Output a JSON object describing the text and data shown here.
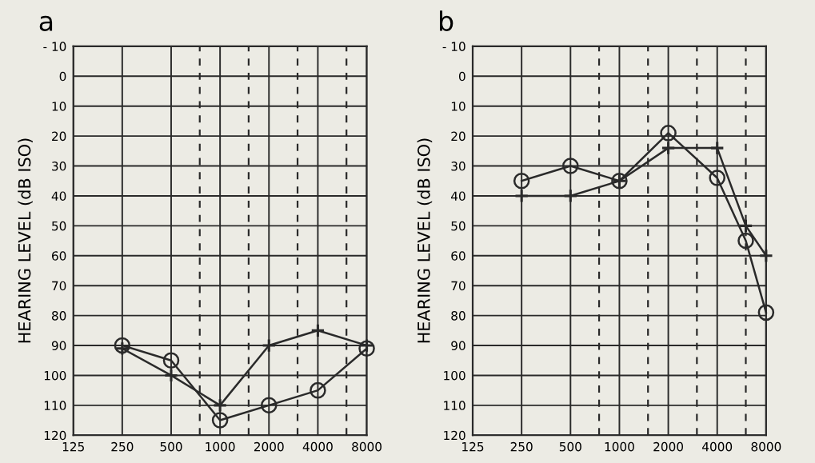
{
  "chart_data": [
    {
      "type": "line",
      "title": "a",
      "ylabel": "HEARING LEVEL (dB ISO)",
      "log": "x",
      "xlim": [
        125,
        8000
      ],
      "xticks": [
        125,
        250,
        500,
        1000,
        2000,
        4000,
        8000
      ],
      "ylim": [
        120,
        -10
      ],
      "yticks": [
        {
          "value": -10,
          "label": "- 10"
        },
        0,
        10,
        20,
        30,
        40,
        50,
        60,
        70,
        80,
        90,
        100,
        110,
        120
      ],
      "grid": true,
      "ref_lines": [
        {
          "axis": "x",
          "value": 750,
          "line_style": "dashed",
          "color": "#2a2a2a"
        },
        {
          "axis": "x",
          "value": 1500,
          "line_style": "dashed",
          "color": "#2a2a2a"
        },
        {
          "axis": "x",
          "value": 3000,
          "line_style": "dashed",
          "color": "#2a2a2a"
        },
        {
          "axis": "x",
          "value": 6000,
          "line_style": "dashed",
          "color": "#2a2a2a"
        }
      ],
      "series": [
        {
          "color": "#2a2a2a",
          "marker": "circle",
          "x": [
            250,
            500,
            1000,
            2000,
            4000,
            8000
          ],
          "values": [
            90,
            95,
            115,
            110,
            105,
            91
          ]
        },
        {
          "color": "#2a2a2a",
          "marker": "cross",
          "x": [
            250,
            500,
            1000,
            2000,
            4000,
            8000
          ],
          "values": [
            91,
            100,
            110,
            90,
            85,
            90
          ]
        }
      ]
    },
    {
      "type": "line",
      "title": "b",
      "ylabel": "HEARING LEVEL (dB ISO)",
      "log": "x",
      "xlim": [
        125,
        8000
      ],
      "xticks": [
        125,
        250,
        500,
        1000,
        2000,
        4000,
        8000
      ],
      "ylim": [
        120,
        -10
      ],
      "yticks": [
        {
          "value": -10,
          "label": "- 10"
        },
        0,
        10,
        20,
        30,
        40,
        50,
        60,
        70,
        80,
        90,
        100,
        110,
        120
      ],
      "grid": true,
      "ref_lines": [
        {
          "axis": "x",
          "value": 750,
          "line_style": "dashed",
          "color": "#2a2a2a"
        },
        {
          "axis": "x",
          "value": 1500,
          "line_style": "dashed",
          "color": "#2a2a2a"
        },
        {
          "axis": "x",
          "value": 3000,
          "line_style": "dashed",
          "color": "#2a2a2a"
        },
        {
          "axis": "x",
          "value": 6000,
          "line_style": "dashed",
          "color": "#2a2a2a"
        }
      ],
      "series": [
        {
          "color": "#2a2a2a",
          "marker": "circle",
          "x": [
            250,
            500,
            1000,
            2000,
            4000,
            6000,
            8000
          ],
          "values": [
            35,
            30,
            35,
            19,
            34,
            55,
            79
          ]
        },
        {
          "color": "#2a2a2a",
          "marker": "cross",
          "x": [
            250,
            500,
            1000,
            2000,
            4000,
            6000,
            8000
          ],
          "values": [
            40,
            40,
            35,
            24,
            24,
            50,
            60
          ]
        }
      ]
    }
  ]
}
